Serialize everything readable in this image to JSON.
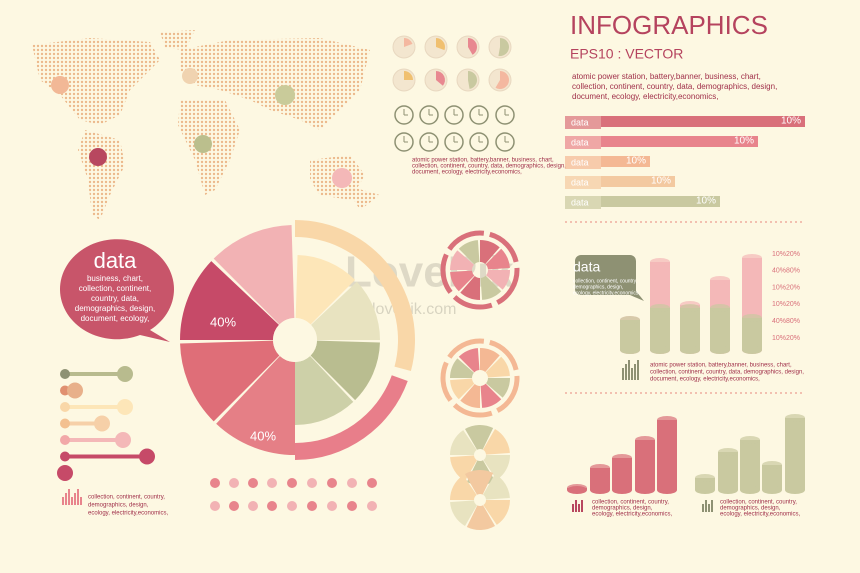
{
  "header": {
    "title": "INFOGRAPHICS",
    "subtitle": "EPS10 : VECTOR",
    "description": [
      "atomic power station, battery,banner, business, chart,",
      "collection, continent, country, data, demographics, design,",
      "document, ecology, electricity,economics,"
    ]
  },
  "ribbon_bars": [
    {
      "label": "data",
      "value_label": "10%"
    },
    {
      "label": "data",
      "value_label": "10%"
    },
    {
      "label": "data",
      "value_label": "10%"
    },
    {
      "label": "data",
      "value_label": "10%"
    },
    {
      "label": "data",
      "value_label": "10%"
    }
  ],
  "bubble": {
    "title": "data",
    "lines": [
      "business, chart,",
      "collection, continent,",
      "country, data,",
      "demographics, design,",
      "document, ecology,"
    ]
  },
  "pie_labels": [
    "40%",
    "40%"
  ],
  "clock_caption": [
    "atomic power station, battery,banner, business, chart,",
    "collection, continent, country, data, demographics, design,",
    "document, ecology, electricity,economics,"
  ],
  "small_bubble": {
    "title": "data",
    "lines": [
      "collection, continent, country,",
      "demographics, design,",
      "ecology, electricity,economics,"
    ]
  },
  "cylinder_labels": [
    "10%20%",
    "40%80%",
    "10%20%",
    "10%20%",
    "40%80%",
    "10%20%"
  ],
  "cylinder_caption": [
    "atomic power station, battery,banner, business, chart,",
    "collection, continent, country, data, demographics, design,",
    "document, ecology, electricity,economics,"
  ],
  "left_caption": [
    "collection, continent, country,",
    "demographics, design,",
    "ecology, electricity,economics,"
  ],
  "red_chart_caption": [
    "collection, continent, country,",
    "demographics, design,",
    "ecology, electricity,economics,"
  ],
  "green_chart_caption": [
    "collection, continent, country,",
    "demographics, design,",
    "ecology, electricity,economics,"
  ],
  "watermark": {
    "logo": "LovePik",
    "url": "lovepik.com"
  }
}
